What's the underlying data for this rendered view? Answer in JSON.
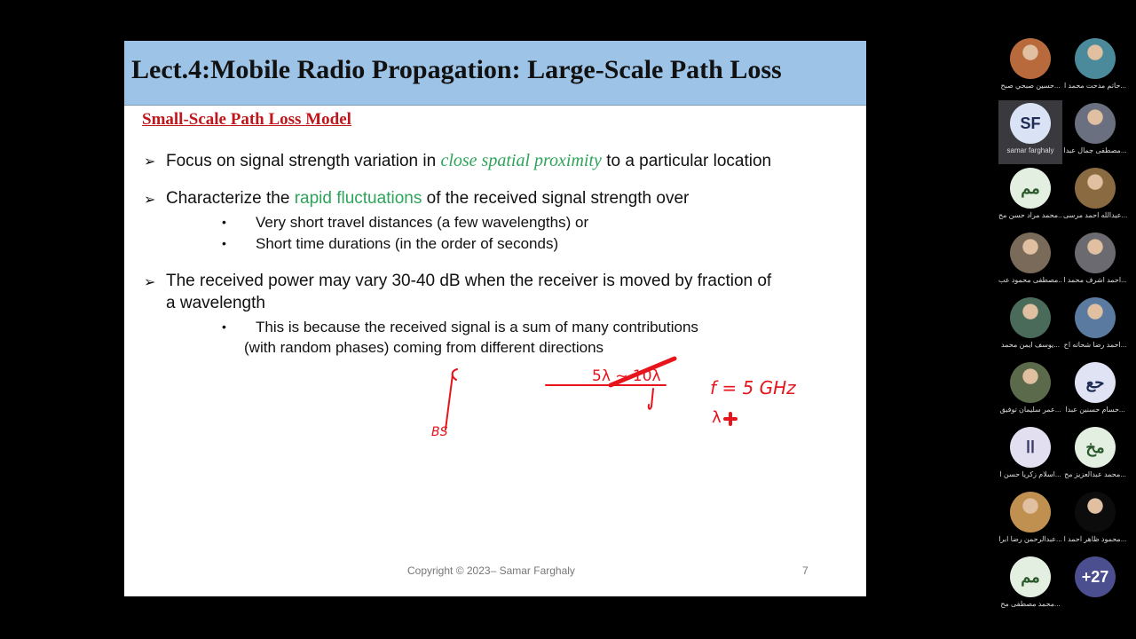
{
  "slide": {
    "title": "Lect.4:Mobile Radio Propagation: Large-Scale Path Loss",
    "subtitle": "Small-Scale Path Loss Model",
    "bullet_marker": "➢",
    "sub_marker": "•",
    "b1": {
      "pre": "Focus on signal strength variation in ",
      "em": "close spatial proximity",
      "post": " to a particular location"
    },
    "b2": {
      "pre": "Characterize the ",
      "em": "rapid fluctuations",
      "post": " of the received signal strength over",
      "subs": [
        "Very short travel distances (a few wavelengths) or",
        "Short time durations (in the order of seconds)"
      ]
    },
    "b3": {
      "line1": " The received power may vary 30-40 dB when the receiver is moved by fraction of",
      "line2": "a wavelength",
      "sub1": "This is because the received signal is a sum of many contributions",
      "sub2": "(with random phases) coming from different directions"
    },
    "footer": "Copyright © 2023– Samar Farghaly",
    "page": "7",
    "handwriting": {
      "bs": "BS",
      "range": "5λ ~ 10λ",
      "freq": "f = 5 GHz",
      "lambda": "λ"
    },
    "ink_color": "#e8141c"
  },
  "participants": [
    {
      "name": "حسين صبحي صبح...",
      "type": "photo",
      "color": "#b86a3c"
    },
    {
      "name": "حاتم مدحت محمد ا...",
      "type": "photo",
      "color": "#4a8a9a"
    },
    {
      "name": "samar farghaly",
      "type": "initials",
      "initials": "SF",
      "bg": "#d9e3f5",
      "fg": "#1d2b55",
      "active": true
    },
    {
      "name": "مصطفى جمال عبدا...",
      "type": "photo",
      "color": "#6a7080"
    },
    {
      "name": "محمد مراد حسن مح...",
      "type": "initials",
      "initials": "مم",
      "bg": "#e3efe1",
      "fg": "#2c5a2c"
    },
    {
      "name": "عبدالله احمد مرسى...",
      "type": "photo",
      "color": "#8a6a40"
    },
    {
      "name": "مصطفى محمود عب...",
      "type": "photo",
      "color": "#7a6a5a"
    },
    {
      "name": "احمد اشرف محمد ا...",
      "type": "photo",
      "color": "#6a6a70"
    },
    {
      "name": "يوسف ايمن محمد...",
      "type": "photo",
      "color": "#4a6a5a"
    },
    {
      "name": "احمد رضا شحاته اح...",
      "type": "photo",
      "color": "#5a7aa0"
    },
    {
      "name": "عمر سليمان توفيق...",
      "type": "photo",
      "color": "#5a6a4a"
    },
    {
      "name": "حسام حسنين عبدا...",
      "type": "initials",
      "initials": "حع",
      "bg": "#dfe3f3",
      "fg": "#1d2b55"
    },
    {
      "name": "اسلام زكريا حسن ا...",
      "type": "initials",
      "initials": "اا",
      "bg": "#e2e0f0",
      "fg": "#3a3a6a"
    },
    {
      "name": "محمد عبدالعزيز مح...",
      "type": "initials",
      "initials": "مخ",
      "bg": "#e3efe1",
      "fg": "#2c5a2c"
    },
    {
      "name": "عبدالرحمن رضا ابرا...",
      "type": "photo",
      "color": "#c09050"
    },
    {
      "name": "محمود ظاهر احمد ا...",
      "type": "photo",
      "color": "#0c0c0c"
    },
    {
      "name": "محمد مصطفى مح...",
      "type": "initials",
      "initials": "مم",
      "bg": "#e3efe1",
      "fg": "#2c5a2c"
    },
    {
      "name": "",
      "type": "more",
      "initials": "+27",
      "bg": "#4b4f8f",
      "fg": "#ffffff"
    }
  ]
}
